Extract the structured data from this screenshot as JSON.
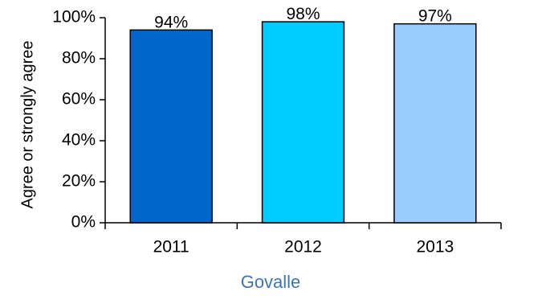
{
  "chart_data": {
    "type": "bar",
    "categories": [
      "2011",
      "2012",
      "2013"
    ],
    "values": [
      94,
      98,
      97
    ],
    "data_labels": [
      "94%",
      "98%",
      "97%"
    ],
    "bar_colors": [
      "#0066cc",
      "#00ccff",
      "#99ccff"
    ],
    "caption_color": "#3b75b5",
    "title": "",
    "xlabel": "Govalle",
    "ylabel": "Agree or strongly agree",
    "ylim": [
      0,
      100
    ],
    "yticks": [
      0,
      20,
      40,
      60,
      80,
      100
    ],
    "ytick_labels": [
      "0%",
      "20%",
      "40%",
      "60%",
      "80%",
      "100%"
    ],
    "grid": false,
    "legend": "none"
  }
}
